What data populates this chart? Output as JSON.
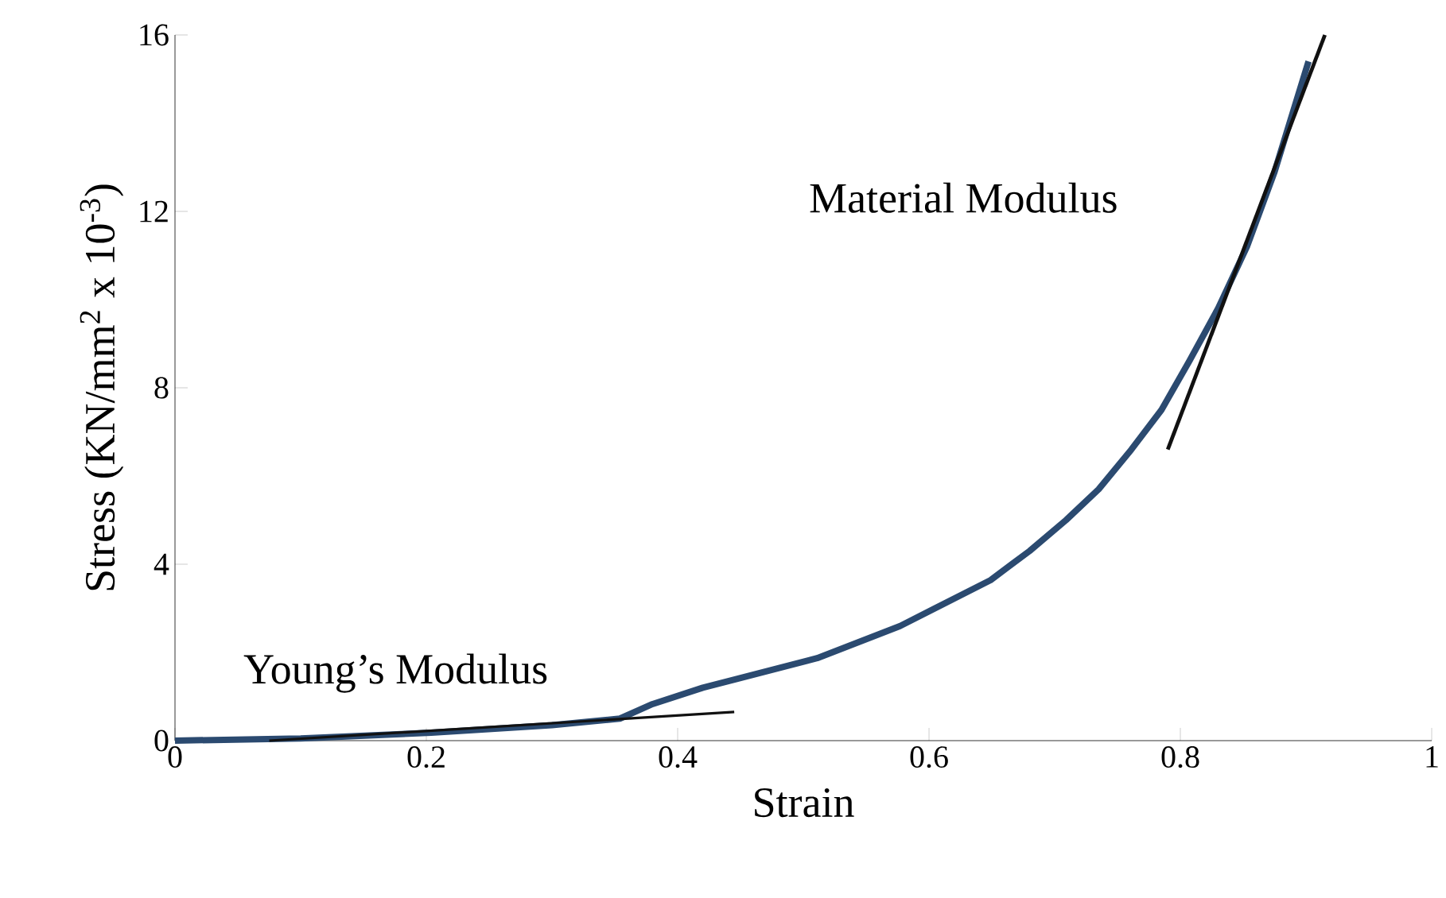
{
  "chart_data": {
    "type": "line",
    "xlabel": "Strain",
    "ylabel": "Stress (KN/mm$^{2}$ x 10$^{-3}$)",
    "xlim": [
      0,
      1
    ],
    "ylim": [
      0,
      16
    ],
    "xticks": [
      0,
      0.2,
      0.4,
      0.6,
      0.8,
      1
    ],
    "yticks": [
      0,
      4,
      8,
      12,
      16
    ],
    "grid": false,
    "series": [
      {
        "color": "#2b4a70",
        "x": [
          0,
          0.1,
          0.204,
          0.3,
          0.354,
          0.38,
          0.42,
          0.447,
          0.511,
          0.577,
          0.649,
          0.68,
          0.709,
          0.735,
          0.761,
          0.785,
          0.807,
          0.83,
          0.853,
          0.875,
          0.902
        ],
        "values": [
          0,
          0.05,
          0.18,
          0.35,
          0.5,
          0.83,
          1.2,
          1.4,
          1.87,
          2.6,
          3.64,
          4.3,
          5.0,
          5.7,
          6.6,
          7.5,
          8.6,
          9.8,
          11.2,
          12.9,
          15.4
        ]
      },
      {
        "color": "#111111",
        "x": [
          0.075,
          0.445
        ],
        "values": [
          0,
          0.65
        ]
      },
      {
        "color": "#111111",
        "x": [
          0.79,
          0.915
        ],
        "values": [
          6.6,
          16
        ]
      }
    ],
    "annotations": [
      "Young’s Modulus",
      "Material Modulus"
    ]
  }
}
